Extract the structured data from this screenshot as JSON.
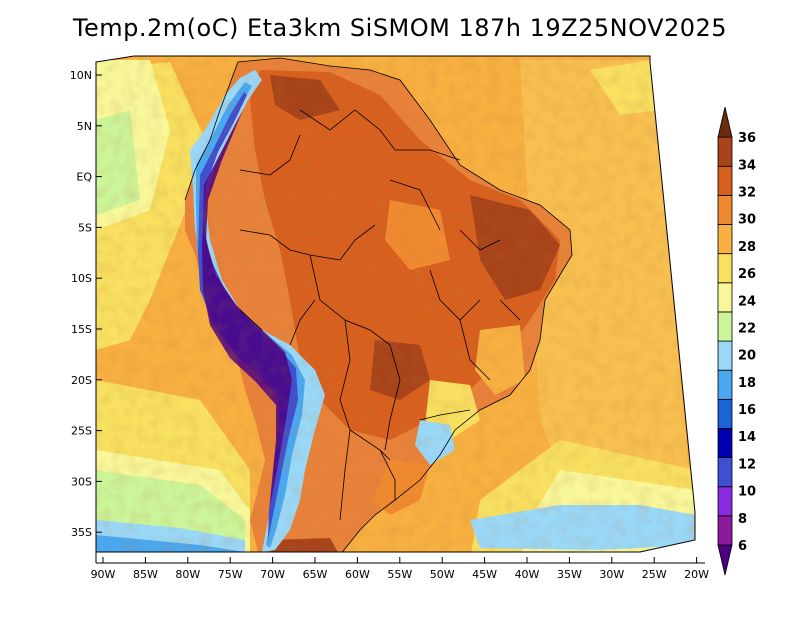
{
  "title": "Temp.2m(oC) Eta3km SiSMOM 187h 19Z25NOV2025",
  "map": {
    "x_ticks": [
      "90W",
      "85W",
      "80W",
      "75W",
      "70W",
      "65W",
      "60W",
      "55W",
      "50W",
      "45W",
      "40W",
      "35W",
      "30W",
      "25W",
      "20W"
    ],
    "y_ticks": [
      "10N",
      "5N",
      "EQ",
      "5S",
      "10S",
      "15S",
      "20S",
      "25S",
      "30S",
      "35S"
    ]
  },
  "colorbar": {
    "levels": [
      "6",
      "8",
      "10",
      "12",
      "14",
      "16",
      "18",
      "20",
      "22",
      "24",
      "26",
      "28",
      "30",
      "32",
      "34",
      "36"
    ],
    "colors": [
      "#4b0082",
      "#8b1a9c",
      "#8a2be2",
      "#3f4fd0",
      "#0000b3",
      "#1c63d6",
      "#4aa8f0",
      "#9ad8f8",
      "#ccf59a",
      "#f8f89a",
      "#f8e060",
      "#f8b040",
      "#f08a30",
      "#d8601e",
      "#a8431a",
      "#6e2a10"
    ]
  }
}
